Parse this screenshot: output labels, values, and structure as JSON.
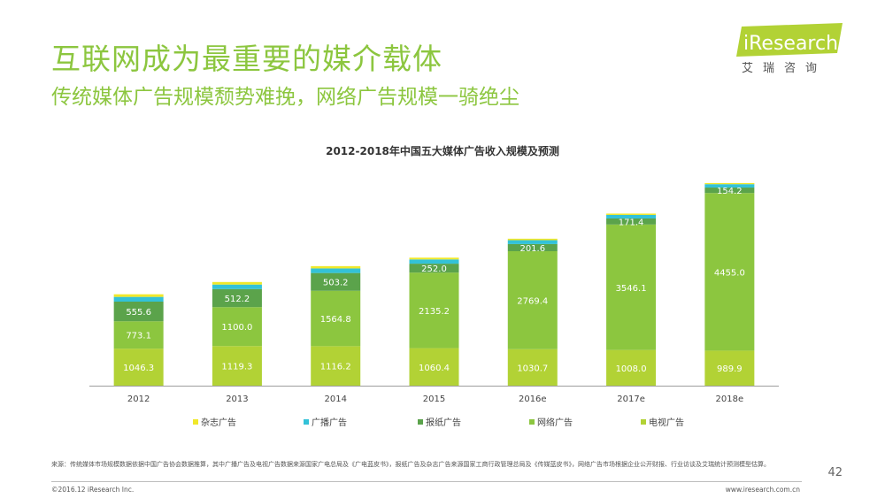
{
  "header": {
    "title": "互联网成为最重要的媒介载体",
    "subtitle": "传统媒体广告规模颓势难挽，网络广告规模一骑绝尘"
  },
  "logo": {
    "brand": "iResearch",
    "cn": "艾瑞咨询"
  },
  "chart_data": {
    "type": "bar",
    "stacked": true,
    "title": "2012-2018年中国五大媒体广告收入规模及预测",
    "categories": [
      "2012",
      "2013",
      "2014",
      "2015",
      "2016e",
      "2017e",
      "2018e"
    ],
    "series": [
      {
        "name": "电视广告",
        "color": "#b2d235",
        "values": [
          1046.3,
          1119.3,
          1116.2,
          1060.4,
          1030.7,
          1008.0,
          989.9
        ],
        "labels": [
          "1046.3",
          "1119.3",
          "1116.2",
          "1060.4",
          "1030.7",
          "1008.0",
          "989.9"
        ]
      },
      {
        "name": "网络广告",
        "color": "#8cc63f",
        "values": [
          773.1,
          1100.0,
          1564.8,
          2135.2,
          2769.4,
          3546.1,
          4455.0
        ],
        "labels": [
          "773.1",
          "1100.0",
          "1564.8",
          "2135.2",
          "2769.4",
          "3546.1",
          "4455.0"
        ]
      },
      {
        "name": "报纸广告",
        "color": "#5ba34b",
        "values": [
          555.6,
          512.2,
          503.2,
          252.0,
          201.6,
          171.4,
          154.2
        ],
        "labels": [
          "555.6",
          "512.2",
          "503.2",
          "252.0",
          "201.6",
          "171.4",
          "154.2"
        ]
      },
      {
        "name": "广播广告",
        "color": "#33c2d8",
        "values": [
          134,
          126,
          130,
          120,
          110,
          100,
          96
        ],
        "labels": [
          "",
          "",
          "",
          "",
          "",
          "",
          ""
        ]
      },
      {
        "name": "杂志广告",
        "color": "#f0e82a",
        "values": [
          74,
          72,
          64,
          50,
          42,
          38,
          32
        ],
        "labels": [
          "",
          "",
          "",
          "",
          "",
          "",
          ""
        ]
      }
    ],
    "legend": [
      "杂志广告",
      "广播广告",
      "报纸广告",
      "网络广告",
      "电视广告"
    ],
    "legend_position": "bottom",
    "ylim": [
      0,
      6000
    ]
  },
  "footer": {
    "source": "来源：传统媒体市场规模数据依据中国广告协会数据推算，其中广播广告及电视广告数据来源国家广电总局及《广电蓝皮书》，报纸广告及杂志广告来源国家工商行政管理总局及《传媒蓝皮书》，网络广告市场根据企业公开财报、行业访谈及艾瑞统计预测模型估算。",
    "copyright": "©2016.12 iResearch Inc.",
    "url": "www.iresearch.com.cn",
    "page_number": "42"
  }
}
